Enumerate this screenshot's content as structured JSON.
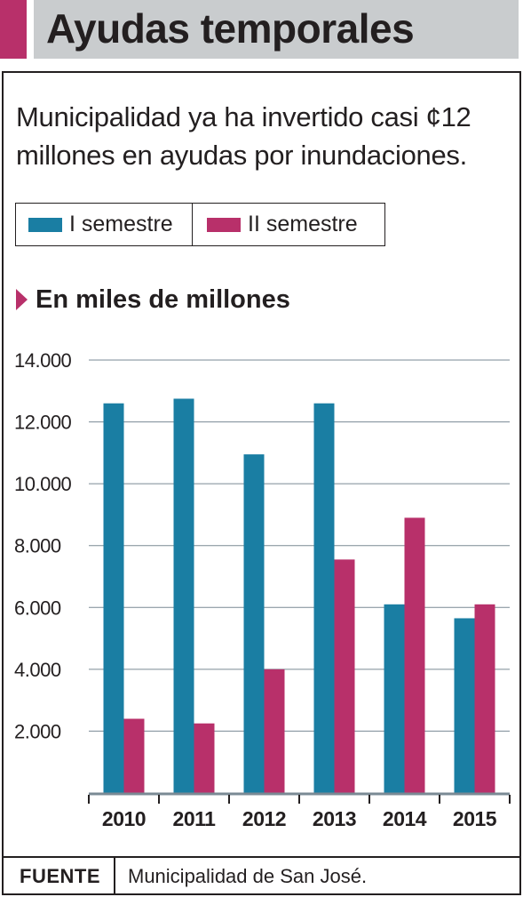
{
  "header": {
    "title": "Ayudas temporales"
  },
  "subtitle": "Municipalidad ya ha invertido casi ¢12 millones en ayudas por inundaciones.",
  "legend": [
    {
      "label": "I semestre",
      "color": "#1a7ea3"
    },
    {
      "label": "II semestre",
      "color": "#b8306a"
    }
  ],
  "units_label": "En miles de millones",
  "footer": {
    "label": "FUENTE",
    "source": "Municipalidad de San José."
  },
  "chart_data": {
    "type": "bar",
    "categories": [
      "2010",
      "2011",
      "2012",
      "2013",
      "2014",
      "2015"
    ],
    "series": [
      {
        "name": "I semestre",
        "color": "#1a7ea3",
        "values": [
          12600,
          12750,
          10950,
          12600,
          6100,
          5650
        ]
      },
      {
        "name": "II semestre",
        "color": "#b8306a",
        "values": [
          2400,
          2250,
          4000,
          7550,
          8900,
          6100
        ]
      }
    ],
    "ylim": [
      0,
      14000
    ],
    "yticks": [
      "2.000",
      "4.000",
      "6.000",
      "8.000",
      "10.000",
      "12.000",
      "14.000"
    ],
    "ytick_values": [
      2000,
      4000,
      6000,
      8000,
      10000,
      12000,
      14000
    ],
    "grid": true,
    "legend_position": "top"
  }
}
